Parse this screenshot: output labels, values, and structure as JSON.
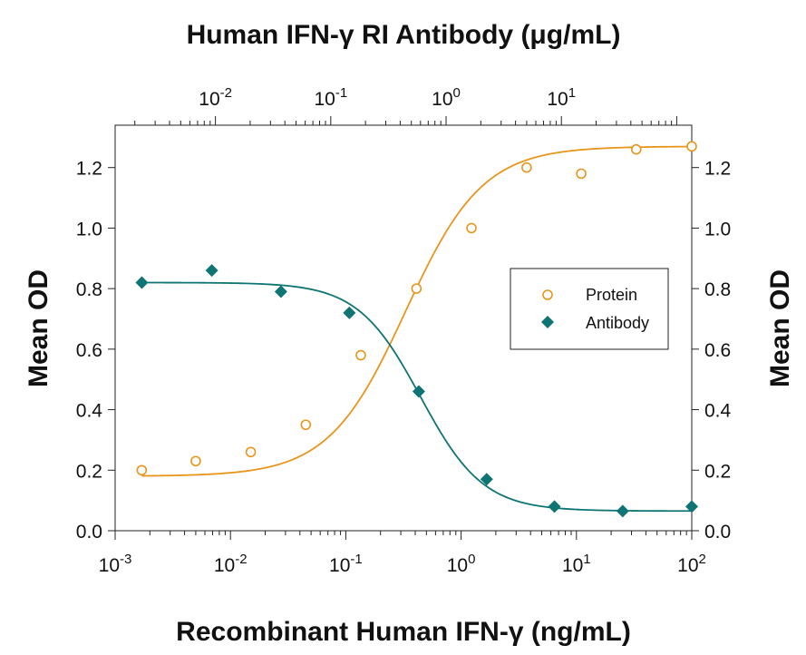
{
  "chart_data": {
    "type": "scatter",
    "title_top_axis": "Human IFN-γ RI Antibody (μg/mL)",
    "xlabel": "Recombinant Human IFN-γ (ng/mL)",
    "ylabel_left": "Mean OD",
    "ylabel_right": "Mean OD",
    "x_scale": "log",
    "xlim": [
      0.001,
      100
    ],
    "x_ticks": [
      {
        "base": "10",
        "exp": "-3",
        "value": 0.001
      },
      {
        "base": "10",
        "exp": "-2",
        "value": 0.01
      },
      {
        "base": "10",
        "exp": "-1",
        "value": 0.1
      },
      {
        "base": "10",
        "exp": "0",
        "value": 1
      },
      {
        "base": "10",
        "exp": "1",
        "value": 10
      },
      {
        "base": "10",
        "exp": "2",
        "value": 100
      }
    ],
    "top_x_ticks": [
      {
        "base": "10",
        "exp": "-2",
        "value": 0.01
      },
      {
        "base": "10",
        "exp": "-1",
        "value": 0.1
      },
      {
        "base": "10",
        "exp": "0",
        "value": 1
      },
      {
        "base": "10",
        "exp": "1",
        "value": 10
      }
    ],
    "top_xlim": [
      0.00135,
      135
    ],
    "ylim": [
      0.0,
      1.34
    ],
    "y_ticks": [
      "0.0",
      "0.2",
      "0.4",
      "0.6",
      "0.8",
      "1.0",
      "1.2"
    ],
    "grid": false,
    "legend": {
      "placement": "center-right",
      "entries": [
        "Protein",
        "Antibody"
      ]
    },
    "series": [
      {
        "name": "Protein",
        "marker": "open-circle",
        "color": "#E8951C",
        "axis": "bottom",
        "points": [
          {
            "x": 0.0017,
            "y": 0.2
          },
          {
            "x": 0.005,
            "y": 0.23
          },
          {
            "x": 0.015,
            "y": 0.26
          },
          {
            "x": 0.045,
            "y": 0.35
          },
          {
            "x": 0.135,
            "y": 0.58
          },
          {
            "x": 0.41,
            "y": 0.8
          },
          {
            "x": 1.23,
            "y": 1.0
          },
          {
            "x": 3.7,
            "y": 1.2
          },
          {
            "x": 11,
            "y": 1.18
          },
          {
            "x": 33,
            "y": 1.26
          },
          {
            "x": 100,
            "y": 1.27
          }
        ],
        "fit": {
          "bottom": 0.18,
          "top": 1.27,
          "ec50": 0.33,
          "hill": 1.3
        }
      },
      {
        "name": "Antibody",
        "marker": "filled-diamond",
        "color": "#0E7574",
        "axis": "top",
        "points": [
          {
            "x": 0.0023,
            "y": 0.82
          },
          {
            "x": 0.0093,
            "y": 0.86
          },
          {
            "x": 0.037,
            "y": 0.79
          },
          {
            "x": 0.145,
            "y": 0.72
          },
          {
            "x": 0.58,
            "y": 0.46
          },
          {
            "x": 2.25,
            "y": 0.17
          },
          {
            "x": 8.7,
            "y": 0.08
          },
          {
            "x": 34,
            "y": 0.065
          },
          {
            "x": 135,
            "y": 0.08
          }
        ],
        "fit": {
          "bottom": 0.065,
          "top": 0.82,
          "ec50": 0.6,
          "hill": 1.6
        }
      }
    ]
  }
}
